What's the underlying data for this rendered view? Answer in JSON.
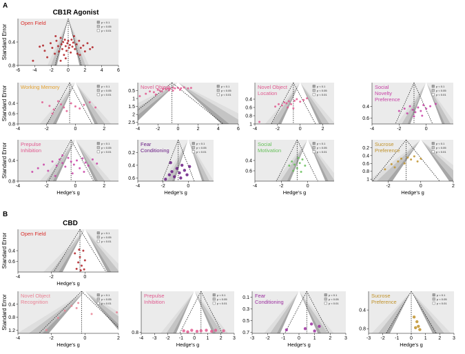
{
  "labels": {
    "section_a": "A",
    "section_b": "B",
    "title_a": "CB1R Agonist",
    "title_b": "CBD",
    "ylabel": "Standard Error",
    "xlabel": "Hedge's g"
  },
  "legend": [
    "p < 0.1",
    "p < 0.05",
    "p < 0.01"
  ],
  "colors": {
    "bg": "#ebebeb",
    "funnel_dark": "#a6a6a6",
    "funnel_mid": "#c4c4c4",
    "funnel_light": "#dedede",
    "funnel_inner": "#ffffff",
    "red": "#b01e23",
    "pink": "#e05a8f",
    "orange": "#e3a12f",
    "magenta": "#c842a6",
    "purple": "#6a1d84",
    "green": "#67c05a",
    "gold": "#c0922a",
    "salmon": "#ea8294",
    "violet": "#9b2e9f"
  },
  "chart_data": [
    {
      "id": "a-open-field",
      "type": "scatter",
      "title": "Open Field",
      "title_color": "#d9302c",
      "dot_color": "#b01e23",
      "size": "s",
      "xlim": [
        -6,
        6
      ],
      "xticks": [
        -6,
        -4,
        -2,
        0,
        2,
        4,
        6
      ],
      "ylim": [
        0,
        0.8
      ],
      "yticks": [
        0.4,
        0.8
      ],
      "mean": 0.0,
      "se_max": 0.8,
      "points": [
        [
          -4.2,
          0.72
        ],
        [
          -3.4,
          0.48
        ],
        [
          -2.8,
          0.55
        ],
        [
          -2.5,
          0.66
        ],
        [
          -2.1,
          0.42
        ],
        [
          -1.9,
          0.5
        ],
        [
          -1.6,
          0.6
        ],
        [
          -1.4,
          0.38
        ],
        [
          -1.2,
          0.47
        ],
        [
          -1.1,
          0.56
        ],
        [
          -0.9,
          0.33
        ],
        [
          -0.8,
          0.44
        ],
        [
          -0.7,
          0.52
        ],
        [
          -0.6,
          0.4
        ],
        [
          -0.5,
          0.62
        ],
        [
          -0.4,
          0.36
        ],
        [
          -0.3,
          0.47
        ],
        [
          -0.2,
          0.55
        ],
        [
          -0.1,
          0.42
        ],
        [
          0.0,
          0.38
        ],
        [
          0.1,
          0.5
        ],
        [
          0.2,
          0.45
        ],
        [
          0.3,
          0.58
        ],
        [
          0.4,
          0.36
        ],
        [
          0.5,
          0.48
        ],
        [
          0.6,
          0.41
        ],
        [
          0.8,
          0.52
        ],
        [
          1.0,
          0.44
        ],
        [
          1.1,
          0.6
        ],
        [
          1.3,
          0.38
        ],
        [
          1.5,
          0.5
        ],
        [
          1.8,
          0.46
        ],
        [
          2.0,
          0.56
        ],
        [
          2.3,
          0.42
        ],
        [
          2.6,
          0.52
        ],
        [
          -1.5,
          0.3
        ],
        [
          0.7,
          0.3
        ],
        [
          -0.3,
          0.68
        ],
        [
          1.4,
          0.62
        ],
        [
          2.9,
          0.49
        ],
        [
          -3.0,
          0.46
        ],
        [
          -0.9,
          0.72
        ]
      ]
    },
    {
      "id": "a-working-memory",
      "type": "scatter",
      "title": "Working Memory",
      "title_color": "#e3a12f",
      "dot_color": "#e05a8f",
      "size": "s",
      "xlim": [
        -4,
        3
      ],
      "xticks": [
        -4,
        -2,
        0,
        2
      ],
      "ylim": [
        0,
        0.8
      ],
      "yticks": [
        0.4,
        0.6,
        0.8
      ],
      "mean": -0.4,
      "se_max": 0.8,
      "points": [
        [
          -2.3,
          0.38
        ],
        [
          -1.8,
          0.45
        ],
        [
          -1.5,
          0.52
        ],
        [
          -1.2,
          0.36
        ],
        [
          -1.0,
          0.42
        ],
        [
          -0.8,
          0.48
        ],
        [
          -0.6,
          0.55
        ],
        [
          -0.3,
          0.4
        ],
        [
          0.0,
          0.46
        ],
        [
          0.3,
          0.5
        ],
        [
          0.6,
          0.43
        ],
        [
          1.0,
          0.38
        ],
        [
          1.4,
          0.48
        ],
        [
          -1.6,
          0.6
        ]
      ]
    },
    {
      "id": "a-novel-object",
      "type": "scatter",
      "title": "Novel Object",
      "title_color": "#e05a8f",
      "dot_color": "#e05a8f",
      "size": "s",
      "xlim": [
        -4,
        6
      ],
      "xticks": [
        -4,
        -2,
        0,
        2,
        4,
        6
      ],
      "ylim": [
        0,
        2.6
      ],
      "yticks": [
        0.5,
        1.0,
        1.5,
        2.0,
        2.5
      ],
      "mean": -0.6,
      "se_max": 2.6,
      "points": [
        [
          -3.8,
          0.85
        ],
        [
          -3.2,
          0.7
        ],
        [
          -2.8,
          0.55
        ],
        [
          -2.4,
          0.6
        ],
        [
          -2.0,
          0.45
        ],
        [
          -1.8,
          0.5
        ],
        [
          -1.5,
          0.4
        ],
        [
          -1.2,
          0.42
        ],
        [
          -1.0,
          0.35
        ],
        [
          -0.8,
          0.38
        ],
        [
          -0.5,
          0.32
        ],
        [
          -0.3,
          0.36
        ],
        [
          0.0,
          0.33
        ],
        [
          0.3,
          0.35
        ],
        [
          0.6,
          0.3
        ],
        [
          1.0,
          0.36
        ],
        [
          1.3,
          0.33
        ],
        [
          -2.2,
          0.75
        ],
        [
          -1.6,
          0.55
        ],
        [
          -0.9,
          0.48
        ],
        [
          0.2,
          0.45
        ],
        [
          -0.5,
          0.5
        ]
      ]
    },
    {
      "id": "a-novel-object-location",
      "type": "scatter",
      "title": "Novel Object Location",
      "title_color": "#e05a8f",
      "dot_color": "#e05a8f",
      "size": "s",
      "xlim": [
        -4,
        3
      ],
      "xticks": [
        -4,
        -2,
        0,
        2
      ],
      "ylim": [
        0,
        1.0
      ],
      "yticks": [
        0.4,
        0.6,
        0.8,
        1.0
      ],
      "mean": -0.6,
      "se_max": 1.0,
      "points": [
        [
          -3.6,
          0.95
        ],
        [
          -2.2,
          0.58
        ],
        [
          -1.9,
          0.52
        ],
        [
          -1.6,
          0.55
        ],
        [
          -1.4,
          0.48
        ],
        [
          -1.2,
          0.5
        ],
        [
          -1.0,
          0.45
        ],
        [
          -0.8,
          0.52
        ],
        [
          -0.5,
          0.44
        ],
        [
          -0.3,
          0.4
        ],
        [
          0.0,
          0.46
        ],
        [
          0.3,
          0.42
        ],
        [
          0.6,
          0.38
        ],
        [
          -1.1,
          0.6
        ],
        [
          -0.6,
          0.62
        ]
      ]
    },
    {
      "id": "a-social-novelty",
      "type": "scatter",
      "title": "Social Novelty Preference",
      "title_color": "#c842a6",
      "dot_color": "#c842a6",
      "size": "s",
      "xlim": [
        -4,
        2
      ],
      "xticks": [
        -4,
        -2,
        0
      ],
      "ylim": [
        0,
        0.7
      ],
      "yticks": [
        0.4,
        0.6
      ],
      "mean": -0.9,
      "se_max": 0.7,
      "points": [
        [
          -2.0,
          0.48
        ],
        [
          -1.6,
          0.44
        ],
        [
          -1.4,
          0.52
        ],
        [
          -1.2,
          0.4
        ],
        [
          -1.0,
          0.46
        ],
        [
          -0.8,
          0.5
        ],
        [
          -0.6,
          0.42
        ],
        [
          -0.4,
          0.48
        ],
        [
          -0.2,
          0.38
        ],
        [
          0.0,
          0.44
        ],
        [
          0.3,
          0.4
        ],
        [
          0.7,
          0.36
        ],
        [
          -0.3,
          0.56
        ],
        [
          -0.9,
          0.57
        ]
      ]
    },
    {
      "id": "a-prepulse",
      "type": "scatter",
      "title": "Prepulse Inhibition",
      "title_color": "#e05a8f",
      "dot_color": "#c842a6",
      "size": "s",
      "xlim": [
        -4,
        3
      ],
      "xticks": [
        -4,
        -2,
        0,
        2
      ],
      "ylim": [
        0,
        0.8
      ],
      "yticks": [
        0.4,
        0.8
      ],
      "mean": -0.3,
      "se_max": 0.8,
      "points": [
        [
          -3.0,
          0.62
        ],
        [
          -2.6,
          0.55
        ],
        [
          -2.2,
          0.48
        ],
        [
          -1.9,
          0.6
        ],
        [
          -1.6,
          0.42
        ],
        [
          -1.3,
          0.5
        ],
        [
          -1.1,
          0.38
        ],
        [
          -0.9,
          0.45
        ],
        [
          -0.7,
          0.52
        ],
        [
          -0.5,
          0.35
        ],
        [
          -0.3,
          0.42
        ],
        [
          -0.1,
          0.48
        ],
        [
          0.1,
          0.4
        ],
        [
          0.3,
          0.55
        ],
        [
          0.5,
          0.36
        ],
        [
          0.7,
          0.44
        ],
        [
          0.9,
          0.5
        ],
        [
          1.2,
          0.38
        ],
        [
          1.5,
          0.46
        ],
        [
          -1.4,
          0.7
        ],
        [
          -0.2,
          0.65
        ],
        [
          0.6,
          0.62
        ],
        [
          -0.9,
          0.3
        ]
      ]
    },
    {
      "id": "a-fear",
      "type": "scatter",
      "title": "Fear Conditioning",
      "title_color": "#6a1d84",
      "dot_color": "#6a1d84",
      "size": "l",
      "xlim": [
        -4,
        2
      ],
      "xticks": [
        -4,
        -2,
        0
      ],
      "ylim": [
        0,
        0.65
      ],
      "yticks": [
        0.2,
        0.4,
        0.6
      ],
      "mean": -0.8,
      "se_max": 0.65,
      "points": [
        [
          -1.8,
          0.62
        ],
        [
          -1.5,
          0.55
        ],
        [
          -1.3,
          0.5
        ],
        [
          -1.1,
          0.58
        ],
        [
          -0.9,
          0.45
        ],
        [
          -0.7,
          0.52
        ],
        [
          -0.5,
          0.4
        ],
        [
          -0.3,
          0.48
        ],
        [
          -0.1,
          0.55
        ],
        [
          0.1,
          0.42
        ],
        [
          -1.4,
          0.36
        ],
        [
          -0.6,
          0.6
        ]
      ]
    },
    {
      "id": "a-social-motivation",
      "type": "scatter",
      "title": "Social Motivation",
      "title_color": "#67c05a",
      "dot_color": "#67c05a",
      "size": "s",
      "xlim": [
        -4,
        2
      ],
      "xticks": [
        -4,
        -2,
        0
      ],
      "ylim": [
        0,
        0.8
      ],
      "yticks": [
        0.4,
        0.6
      ],
      "mean": -0.8,
      "se_max": 0.8,
      "points": [
        [
          -1.4,
          0.5
        ],
        [
          -1.2,
          0.42
        ],
        [
          -1.0,
          0.48
        ],
        [
          -0.8,
          0.55
        ],
        [
          -0.6,
          0.45
        ],
        [
          -0.4,
          0.38
        ],
        [
          -0.2,
          0.5
        ],
        [
          -1.1,
          0.6
        ],
        [
          -0.7,
          0.35
        ],
        [
          -0.5,
          0.62
        ]
      ]
    },
    {
      "id": "a-sucrose",
      "type": "scatter",
      "title": "Sucrose Preference",
      "title_color": "#c0922a",
      "dot_color": "#c0922a",
      "size": "s",
      "xlim": [
        -3,
        2
      ],
      "xticks": [
        -2,
        0,
        2
      ],
      "ylim": [
        0,
        1.05
      ],
      "yticks": [
        0.2,
        0.4,
        0.6,
        0.8,
        1.0
      ],
      "mean": -0.9,
      "se_max": 1.05,
      "points": [
        [
          -2.2,
          0.75
        ],
        [
          -1.8,
          0.62
        ],
        [
          -1.6,
          0.7
        ],
        [
          -1.4,
          0.55
        ],
        [
          -1.2,
          0.48
        ],
        [
          -1.0,
          0.6
        ],
        [
          -0.8,
          0.45
        ],
        [
          -0.6,
          0.5
        ],
        [
          -0.4,
          0.42
        ],
        [
          -0.2,
          0.55
        ],
        [
          0.0,
          0.48
        ]
      ]
    },
    {
      "id": "b-open-field",
      "type": "scatter",
      "title": "Open Field",
      "title_color": "#d9302c",
      "dot_color": "#b01e23",
      "size": "s",
      "xlim": [
        -4,
        2
      ],
      "xticks": [
        -4,
        -2,
        0
      ],
      "ylim": [
        0,
        0.8
      ],
      "yticks": [
        0.4,
        0.6
      ],
      "mean": -0.3,
      "se_max": 0.8,
      "points": [
        [
          -0.6,
          0.45
        ],
        [
          -0.4,
          0.62
        ],
        [
          -0.3,
          0.52
        ],
        [
          -0.2,
          0.68
        ],
        [
          -0.1,
          0.4
        ],
        [
          0.0,
          0.58
        ],
        [
          -0.5,
          0.74
        ],
        [
          -0.25,
          0.77
        ],
        [
          -0.05,
          0.75
        ],
        [
          -0.35,
          0.38
        ]
      ]
    },
    {
      "id": "b-novel-object-recognition",
      "type": "scatter",
      "title": "Novel Object Recognition",
      "title_color": "#ea8294",
      "dot_color": "#ea8294",
      "size": "s",
      "xlim": [
        -4,
        2
      ],
      "xticks": [
        -4,
        -2,
        0,
        2
      ],
      "ylim": [
        0,
        1.3
      ],
      "yticks": [
        0.4,
        0.8,
        1.2
      ],
      "mean": -0.2,
      "se_max": 1.3,
      "points": [
        [
          -2.3,
          1.2
        ],
        [
          -1.6,
          0.82
        ],
        [
          -1.2,
          0.6
        ],
        [
          -0.8,
          0.45
        ],
        [
          -0.5,
          0.52
        ],
        [
          0.4,
          0.7
        ],
        [
          1.9,
          0.65
        ],
        [
          -0.4,
          0.36
        ]
      ]
    },
    {
      "id": "b-prepulse",
      "type": "scatter",
      "title": "Prepulse Inhibition",
      "title_color": "#e05a8f",
      "dot_color": "#e05a8f",
      "size": "l",
      "xlim": [
        -4,
        3
      ],
      "xticks": [
        -4,
        -3,
        -2,
        -1,
        0,
        1,
        2,
        3
      ],
      "ylim": [
        0,
        0.82
      ],
      "yticks": [
        0.8
      ],
      "mean": 0.5,
      "se_max": 0.82,
      "points": [
        [
          -0.8,
          0.77
        ],
        [
          -0.2,
          0.76
        ],
        [
          0.2,
          0.78
        ],
        [
          0.5,
          0.77
        ],
        [
          0.9,
          0.76
        ],
        [
          1.3,
          0.78
        ],
        [
          1.6,
          0.76
        ],
        [
          2.2,
          0.77
        ],
        [
          -0.5,
          0.79
        ]
      ]
    },
    {
      "id": "b-fear",
      "type": "scatter",
      "title": "Fear Conditioning",
      "title_color": "#9b2e9f",
      "dot_color": "#9b2e9f",
      "size": "l",
      "xlim": [
        -3,
        3
      ],
      "xticks": [
        -3,
        -2,
        -1,
        0,
        1,
        2,
        3
      ],
      "ylim": [
        0,
        0.72
      ],
      "yticks": [
        0.1,
        0.3,
        0.5,
        0.7
      ],
      "mean": 0.5,
      "se_max": 0.72,
      "points": [
        [
          -0.8,
          0.66
        ],
        [
          0.4,
          0.64
        ],
        [
          0.8,
          0.56
        ],
        [
          1.0,
          0.68
        ],
        [
          1.3,
          0.6
        ]
      ]
    },
    {
      "id": "b-sucrose",
      "type": "scatter",
      "title": "Sucrose Preference",
      "title_color": "#c0922a",
      "dot_color": "#c0922a",
      "size": "l",
      "xlim": [
        -3,
        3
      ],
      "xticks": [
        -3,
        -2,
        -1,
        0,
        1,
        2,
        3
      ],
      "ylim": [
        0,
        0.9
      ],
      "yticks": [
        0.4,
        0.8
      ],
      "mean": 0.0,
      "se_max": 0.9,
      "points": [
        [
          0.2,
          0.55
        ],
        [
          0.4,
          0.65
        ],
        [
          0.5,
          0.75
        ],
        [
          0.6,
          0.82
        ],
        [
          0.3,
          0.78
        ]
      ]
    }
  ]
}
